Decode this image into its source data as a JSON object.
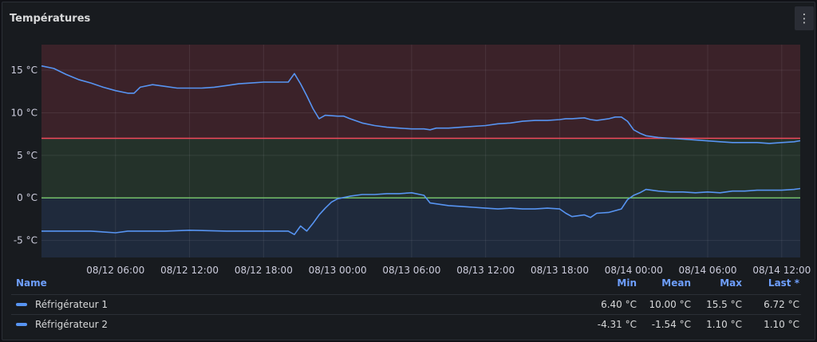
{
  "panel": {
    "title": "Températures",
    "menu_icon": "kebab-vertical-icon"
  },
  "chart_data": {
    "type": "line",
    "title": "Températures",
    "unit": "°C",
    "ylim": [
      -7,
      18
    ],
    "yticks": [
      15,
      10,
      5,
      0,
      -5
    ],
    "ytick_labels": [
      "15 °C",
      "10 °C",
      "5 °C",
      "0 °C",
      "-5 °C"
    ],
    "xlim_hours": [
      0,
      61.5
    ],
    "xticks": [
      {
        "h": 6,
        "label": "08/12 06:00"
      },
      {
        "h": 12,
        "label": "08/12 12:00"
      },
      {
        "h": 18,
        "label": "08/12 18:00"
      },
      {
        "h": 24,
        "label": "08/13 00:00"
      },
      {
        "h": 30,
        "label": "08/13 06:00"
      },
      {
        "h": 36,
        "label": "08/13 12:00"
      },
      {
        "h": 42,
        "label": "08/13 18:00"
      },
      {
        "h": 48,
        "label": "08/14 00:00"
      },
      {
        "h": 54,
        "label": "08/14 06:00"
      },
      {
        "h": 60,
        "label": "08/14 12:00"
      }
    ],
    "thresholds": [
      {
        "value": 7,
        "color": "#f2495c",
        "fill": "#3b2229"
      },
      {
        "value": 0,
        "color": "#73bf69",
        "fill": "#24322a"
      }
    ],
    "base_fill": "#1f2a3c",
    "series": [
      {
        "name": "Réfrigérateur 1",
        "color": "#5794f2",
        "points": [
          [
            0,
            15.5
          ],
          [
            1,
            15.2
          ],
          [
            2,
            14.5
          ],
          [
            3,
            13.9
          ],
          [
            4,
            13.5
          ],
          [
            5,
            13.0
          ],
          [
            6,
            12.6
          ],
          [
            7,
            12.3
          ],
          [
            7.5,
            12.3
          ],
          [
            8,
            13.0
          ],
          [
            9,
            13.3
          ],
          [
            10,
            13.1
          ],
          [
            11,
            12.9
          ],
          [
            12,
            12.9
          ],
          [
            13,
            12.9
          ],
          [
            14,
            13.0
          ],
          [
            15,
            13.2
          ],
          [
            16,
            13.4
          ],
          [
            17,
            13.5
          ],
          [
            18,
            13.6
          ],
          [
            19,
            13.6
          ],
          [
            20,
            13.6
          ],
          [
            20.5,
            14.6
          ],
          [
            21,
            13.4
          ],
          [
            21.5,
            12.0
          ],
          [
            22,
            10.5
          ],
          [
            22.5,
            9.3
          ],
          [
            23,
            9.7
          ],
          [
            24,
            9.6
          ],
          [
            24.5,
            9.6
          ],
          [
            25,
            9.3
          ],
          [
            26,
            8.8
          ],
          [
            27,
            8.5
          ],
          [
            28,
            8.3
          ],
          [
            29,
            8.2
          ],
          [
            30,
            8.1
          ],
          [
            31,
            8.1
          ],
          [
            31.5,
            8.0
          ],
          [
            32,
            8.2
          ],
          [
            33,
            8.2
          ],
          [
            34,
            8.3
          ],
          [
            35,
            8.4
          ],
          [
            36,
            8.5
          ],
          [
            37,
            8.7
          ],
          [
            38,
            8.8
          ],
          [
            39,
            9.0
          ],
          [
            40,
            9.1
          ],
          [
            41,
            9.1
          ],
          [
            42,
            9.2
          ],
          [
            42.5,
            9.3
          ],
          [
            43,
            9.3
          ],
          [
            44,
            9.4
          ],
          [
            44.5,
            9.2
          ],
          [
            45,
            9.1
          ],
          [
            46,
            9.3
          ],
          [
            46.5,
            9.5
          ],
          [
            47,
            9.5
          ],
          [
            47.5,
            9.0
          ],
          [
            48,
            8.0
          ],
          [
            48.5,
            7.6
          ],
          [
            49,
            7.3
          ],
          [
            50,
            7.1
          ],
          [
            51,
            7.0
          ],
          [
            52,
            6.9
          ],
          [
            53,
            6.8
          ],
          [
            54,
            6.7
          ],
          [
            55,
            6.6
          ],
          [
            56,
            6.5
          ],
          [
            57,
            6.5
          ],
          [
            58,
            6.5
          ],
          [
            59,
            6.4
          ],
          [
            60,
            6.5
          ],
          [
            61,
            6.6
          ],
          [
            61.5,
            6.72
          ]
        ]
      },
      {
        "name": "Réfrigérateur 2",
        "color": "#5794f2",
        "points": [
          [
            0,
            -3.9
          ],
          [
            4,
            -3.9
          ],
          [
            6,
            -4.1
          ],
          [
            7,
            -3.9
          ],
          [
            10,
            -3.9
          ],
          [
            12,
            -3.8
          ],
          [
            15,
            -3.9
          ],
          [
            18,
            -3.9
          ],
          [
            20,
            -3.9
          ],
          [
            20.5,
            -4.3
          ],
          [
            21,
            -3.3
          ],
          [
            21.5,
            -3.9
          ],
          [
            22,
            -3.0
          ],
          [
            22.5,
            -2.0
          ],
          [
            23,
            -1.2
          ],
          [
            23.5,
            -0.5
          ],
          [
            24,
            -0.1
          ],
          [
            25,
            0.2
          ],
          [
            26,
            0.4
          ],
          [
            27,
            0.4
          ],
          [
            28,
            0.5
          ],
          [
            29,
            0.5
          ],
          [
            30,
            0.6
          ],
          [
            31,
            0.3
          ],
          [
            31.5,
            -0.6
          ],
          [
            32,
            -0.7
          ],
          [
            33,
            -0.9
          ],
          [
            34,
            -1.0
          ],
          [
            35,
            -1.1
          ],
          [
            36,
            -1.2
          ],
          [
            37,
            -1.3
          ],
          [
            38,
            -1.2
          ],
          [
            39,
            -1.3
          ],
          [
            40,
            -1.3
          ],
          [
            41,
            -1.2
          ],
          [
            42,
            -1.3
          ],
          [
            42.5,
            -1.8
          ],
          [
            43,
            -2.2
          ],
          [
            44,
            -2.0
          ],
          [
            44.5,
            -2.3
          ],
          [
            45,
            -1.8
          ],
          [
            46,
            -1.7
          ],
          [
            47,
            -1.3
          ],
          [
            47.5,
            -0.2
          ],
          [
            48,
            0.3
          ],
          [
            48.5,
            0.6
          ],
          [
            49,
            1.0
          ],
          [
            50,
            0.8
          ],
          [
            51,
            0.7
          ],
          [
            52,
            0.7
          ],
          [
            53,
            0.6
          ],
          [
            54,
            0.7
          ],
          [
            55,
            0.6
          ],
          [
            56,
            0.8
          ],
          [
            57,
            0.8
          ],
          [
            58,
            0.9
          ],
          [
            59,
            0.9
          ],
          [
            60,
            0.9
          ],
          [
            61,
            1.0
          ],
          [
            61.5,
            1.1
          ]
        ]
      }
    ]
  },
  "legend": {
    "headers": {
      "name": "Name",
      "min": "Min",
      "mean": "Mean",
      "max": "Max",
      "last": "Last *"
    },
    "rows": [
      {
        "name": "Réfrigérateur 1",
        "min": "6.40 °C",
        "mean": "10.00 °C",
        "max": "15.5 °C",
        "last": "6.72 °C"
      },
      {
        "name": "Réfrigérateur 2",
        "min": "-4.31 °C",
        "mean": "-1.54 °C",
        "max": "1.10 °C",
        "last": "1.10 °C"
      }
    ]
  }
}
